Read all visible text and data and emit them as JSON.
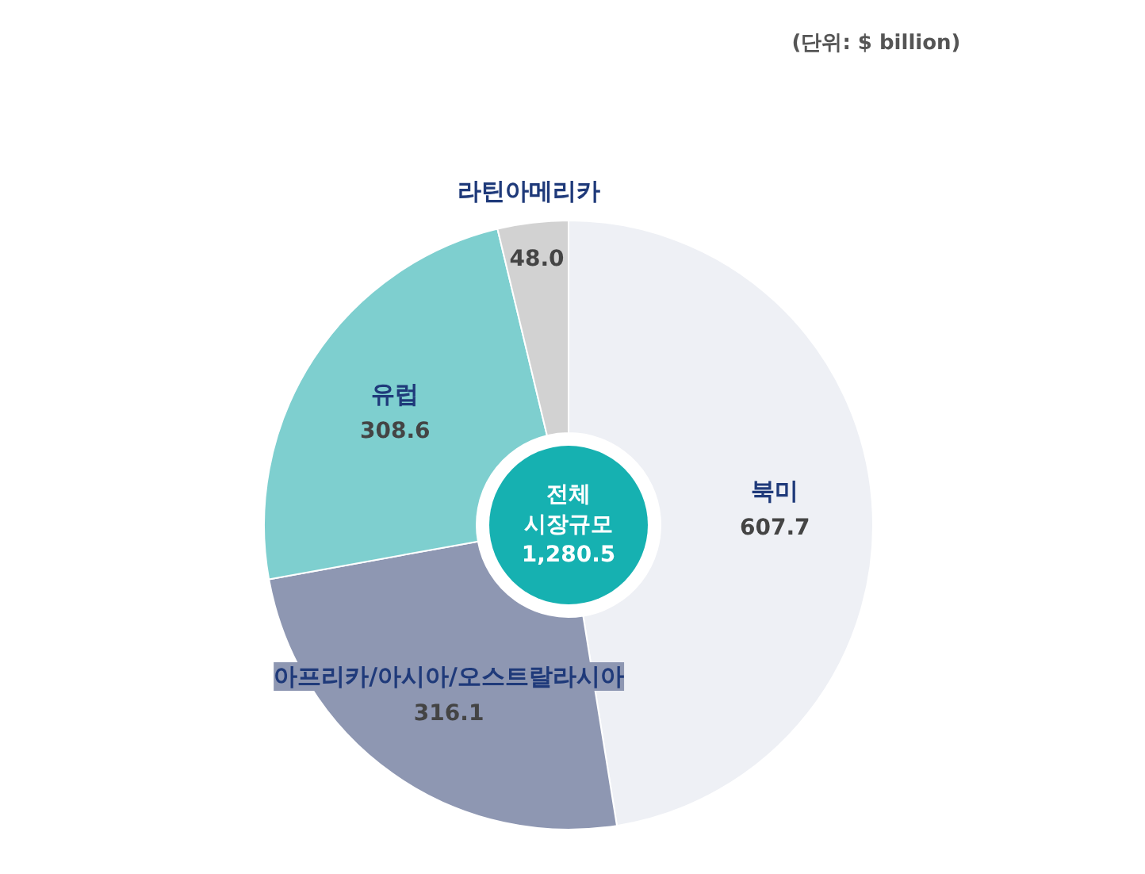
{
  "chart_data": {
    "type": "donut",
    "categories": [
      "북미",
      "아프리카/아시아/오스트랄라시아",
      "유럽",
      "라틴아메리카"
    ],
    "values": [
      607.7,
      316.1,
      308.6,
      48.0
    ],
    "colors": [
      "#eef0f5",
      "#8e97b2",
      "#7ecfcf",
      "#d2d2d2"
    ],
    "value_labels": [
      "607.7",
      "316.1",
      "308.6",
      "48.0"
    ],
    "annotations": [
      "(단위: $ billion)",
      "전체\n시장규모\n1,280.5"
    ]
  }
}
